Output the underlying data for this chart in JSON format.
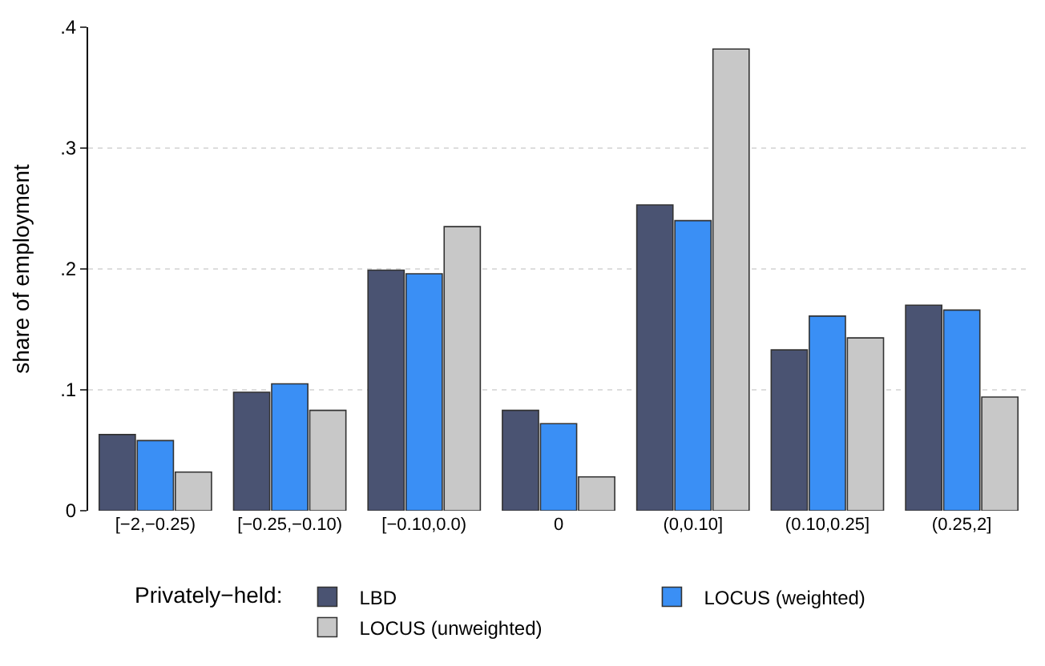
{
  "chart_data": {
    "type": "bar",
    "ylabel": "share of employment",
    "legend_title": "Privately−held:",
    "categories": [
      "[−2,−0.25)",
      "[−0.25,−0.10)",
      "[−0.10,0.0)",
      "0",
      "(0,0.10]",
      "(0.10,0.25]",
      "(0.25,2]"
    ],
    "series": [
      {
        "name": "LBD",
        "color": "#4a5372",
        "values": [
          0.063,
          0.098,
          0.199,
          0.083,
          0.253,
          0.133,
          0.17
        ]
      },
      {
        "name": "LOCUS (weighted)",
        "color": "#3a8ff5",
        "values": [
          0.058,
          0.105,
          0.196,
          0.072,
          0.24,
          0.161,
          0.166
        ]
      },
      {
        "name": "LOCUS (unweighted)",
        "color": "#c8c8c8",
        "values": [
          0.032,
          0.083,
          0.235,
          0.028,
          0.382,
          0.143,
          0.094
        ]
      }
    ],
    "ylim": [
      0,
      0.4
    ],
    "yticks": [
      {
        "value": 0,
        "label": "0"
      },
      {
        "value": 0.1,
        "label": ".1"
      },
      {
        "value": 0.2,
        "label": ".2"
      },
      {
        "value": 0.3,
        "label": ".3"
      },
      {
        "value": 0.4,
        "label": ".4"
      }
    ],
    "grid": "y",
    "legend": "bottom"
  }
}
